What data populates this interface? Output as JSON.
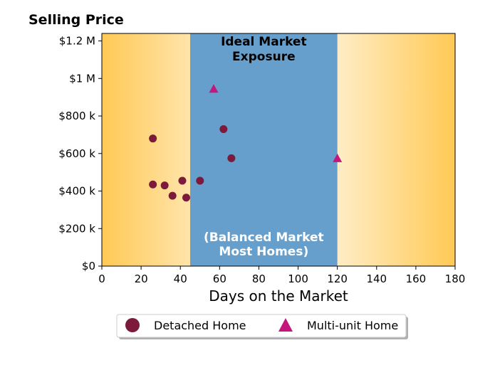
{
  "chart_data": {
    "type": "scatter",
    "title": "Selling Price",
    "xlabel": "Days on the Market",
    "ylabel": "",
    "xlim": [
      0,
      180
    ],
    "ylim": [
      0,
      1240000
    ],
    "x_ticks": [
      0,
      20,
      40,
      60,
      80,
      100,
      120,
      140,
      160,
      180
    ],
    "x_tick_labels": [
      "0",
      "20",
      "40",
      "60",
      "80",
      "100",
      "120",
      "140",
      "160",
      "180"
    ],
    "y_ticks": [
      0,
      200000,
      400000,
      600000,
      800000,
      1000000,
      1200000
    ],
    "y_tick_labels": [
      "$0",
      "$200 k",
      "$400 k",
      "$600 k",
      "$800 k",
      "$1 M",
      "$1.2 M"
    ],
    "band": {
      "x_range": [
        45,
        120
      ],
      "title_lines": [
        "Ideal Market",
        "Exposure"
      ],
      "subtitle_lines": [
        "(Balanced Market",
        "Most Homes)"
      ],
      "color": "#669fcc"
    },
    "background_gradient": {
      "edge_color": "#ffc955",
      "center_color": "#ffffff"
    },
    "series": [
      {
        "name": "Detached Home",
        "marker": "circle",
        "color": "#7b1a3b",
        "points": [
          {
            "x": 26,
            "y": 680000
          },
          {
            "x": 26,
            "y": 435000
          },
          {
            "x": 32,
            "y": 430000
          },
          {
            "x": 36,
            "y": 375000
          },
          {
            "x": 41,
            "y": 455000
          },
          {
            "x": 43,
            "y": 365000
          },
          {
            "x": 50,
            "y": 455000
          },
          {
            "x": 62,
            "y": 730000
          },
          {
            "x": 66,
            "y": 575000
          }
        ]
      },
      {
        "name": "Multi-unit Home",
        "marker": "triangle",
        "color": "#c4177d",
        "points": [
          {
            "x": 57,
            "y": 945000
          },
          {
            "x": 120,
            "y": 575000
          }
        ]
      }
    ],
    "legend_position": "bottom-center",
    "grid": false
  }
}
